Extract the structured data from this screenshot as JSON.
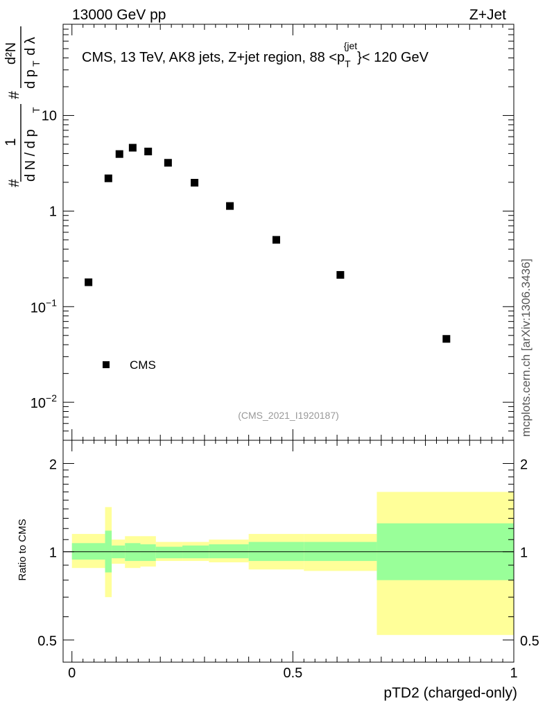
{
  "header": {
    "energy_label": "13000 GeV pp",
    "process_label": "Z+Jet"
  },
  "watermark": "mcplots.cern.ch [arXiv:1306.3436]",
  "analysis_id": "(CMS_2021_I1920187)",
  "chart_data": [
    {
      "type": "scatter",
      "panel": "main",
      "title": "CMS, 13 TeV, AK8 jets, Z+jet region, 88 <p_T^{jet}< 120 GeV",
      "title_parts": {
        "prefix": "CMS, 13 TeV, AK8 jets, Z+jet region, 88 <p",
        "sub": "T",
        "sup": "{jet",
        "suffix": "}< 120 GeV"
      },
      "ylabel_parts": {
        "left": "#",
        "frac_num": "1",
        "frac_den": "d N / d p",
        "sub_T": "T",
        "hash2": "#",
        "inner_num": "d²N",
        "inner_den": "d p",
        "inner_den_tail": "d λ"
      },
      "yscale": "log",
      "ylim": [
        0.004,
        90
      ],
      "xlim": [
        -0.02,
        1.0
      ],
      "yticks": [
        {
          "value": 0.01,
          "label_base": "10",
          "label_exp": "−2"
        },
        {
          "value": 0.1,
          "label_base": "10",
          "label_exp": "−1"
        },
        {
          "value": 1,
          "label": "1"
        },
        {
          "value": 10,
          "label": "10"
        }
      ],
      "series": [
        {
          "name": "CMS",
          "marker": "square",
          "x": [
            0.0375,
            0.0825,
            0.1075,
            0.1375,
            0.1725,
            0.2175,
            0.2775,
            0.3575,
            0.4625,
            0.6075,
            0.8475
          ],
          "y": [
            0.18,
            2.2,
            3.95,
            4.6,
            4.2,
            3.2,
            1.98,
            1.13,
            0.5,
            0.215,
            0.046
          ]
        }
      ],
      "legend": {
        "position": "bottom-left",
        "entries": [
          "CMS"
        ]
      }
    },
    {
      "type": "area",
      "panel": "ratio",
      "ylabel": "Ratio to CMS",
      "xlabel": "pTD2 (charged-only)",
      "yscale": "log",
      "ylim": [
        0.42,
        2.4
      ],
      "xlim": [
        -0.02,
        1.0
      ],
      "xticks": [
        {
          "value": 0,
          "label": "0"
        },
        {
          "value": 0.5,
          "label": "0.5"
        },
        {
          "value": 1,
          "label": "1"
        }
      ],
      "yticks": [
        {
          "value": 0.5,
          "label": "0.5"
        },
        {
          "value": 1,
          "label": "1"
        },
        {
          "value": 2,
          "label": "2"
        }
      ],
      "reference_line": 1.0,
      "bins": [
        {
          "x0": 0.0,
          "x1": 0.075,
          "inner": [
            0.94,
            1.07
          ],
          "outer": [
            0.88,
            1.15
          ]
        },
        {
          "x0": 0.075,
          "x1": 0.09,
          "inner": [
            0.85,
            1.18
          ],
          "outer": [
            0.7,
            1.42
          ]
        },
        {
          "x0": 0.09,
          "x1": 0.12,
          "inner": [
            0.95,
            1.05
          ],
          "outer": [
            0.91,
            1.1
          ]
        },
        {
          "x0": 0.12,
          "x1": 0.155,
          "inner": [
            0.93,
            1.07
          ],
          "outer": [
            0.88,
            1.13
          ]
        },
        {
          "x0": 0.155,
          "x1": 0.19,
          "inner": [
            0.93,
            1.06
          ],
          "outer": [
            0.89,
            1.13
          ]
        },
        {
          "x0": 0.19,
          "x1": 0.25,
          "inner": [
            0.95,
            1.04
          ],
          "outer": [
            0.93,
            1.08
          ]
        },
        {
          "x0": 0.25,
          "x1": 0.31,
          "inner": [
            0.95,
            1.05
          ],
          "outer": [
            0.93,
            1.08
          ]
        },
        {
          "x0": 0.31,
          "x1": 0.4,
          "inner": [
            0.95,
            1.06
          ],
          "outer": [
            0.92,
            1.1
          ]
        },
        {
          "x0": 0.4,
          "x1": 0.525,
          "inner": [
            0.93,
            1.08
          ],
          "outer": [
            0.87,
            1.15
          ]
        },
        {
          "x0": 0.525,
          "x1": 0.69,
          "inner": [
            0.93,
            1.08
          ],
          "outer": [
            0.86,
            1.15
          ]
        },
        {
          "x0": 0.69,
          "x1": 1.0,
          "inner": [
            0.8,
            1.25
          ],
          "outer": [
            0.52,
            1.6
          ]
        }
      ],
      "colors": {
        "inner": "#99ff99",
        "outer": "#ffff99"
      }
    }
  ]
}
